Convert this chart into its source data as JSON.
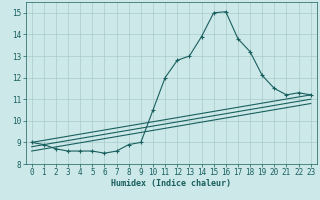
{
  "xlabel": "Humidex (Indice chaleur)",
  "background_color": "#cce8e8",
  "grid_color": "#aacccc",
  "line_color": "#1a5f5f",
  "xlim": [
    -0.5,
    23.5
  ],
  "ylim": [
    8.0,
    15.5
  ],
  "yticks": [
    8,
    9,
    10,
    11,
    12,
    13,
    14,
    15
  ],
  "xticks": [
    0,
    1,
    2,
    3,
    4,
    5,
    6,
    7,
    8,
    9,
    10,
    11,
    12,
    13,
    14,
    15,
    16,
    17,
    18,
    19,
    20,
    21,
    22,
    23
  ],
  "series": [
    {
      "x": [
        0,
        1,
        2,
        3,
        4,
        5,
        6,
        7,
        8,
        9,
        10,
        11,
        12,
        13,
        14,
        15,
        16,
        17,
        18,
        19,
        20,
        21,
        22,
        23
      ],
      "y": [
        9.0,
        8.9,
        8.7,
        8.6,
        8.6,
        8.6,
        8.5,
        8.6,
        8.9,
        9.0,
        10.5,
        12.0,
        12.8,
        13.0,
        13.9,
        15.0,
        15.05,
        13.8,
        13.2,
        12.1,
        11.5,
        11.2,
        11.3,
        11.2
      ],
      "marker": true
    },
    {
      "x": [
        0,
        23
      ],
      "y": [
        9.0,
        11.2
      ],
      "marker": false
    },
    {
      "x": [
        0,
        23
      ],
      "y": [
        8.8,
        11.0
      ],
      "marker": false
    },
    {
      "x": [
        0,
        23
      ],
      "y": [
        8.6,
        10.8
      ],
      "marker": false
    }
  ],
  "xlabel_fontsize": 6,
  "tick_fontsize": 5.5
}
